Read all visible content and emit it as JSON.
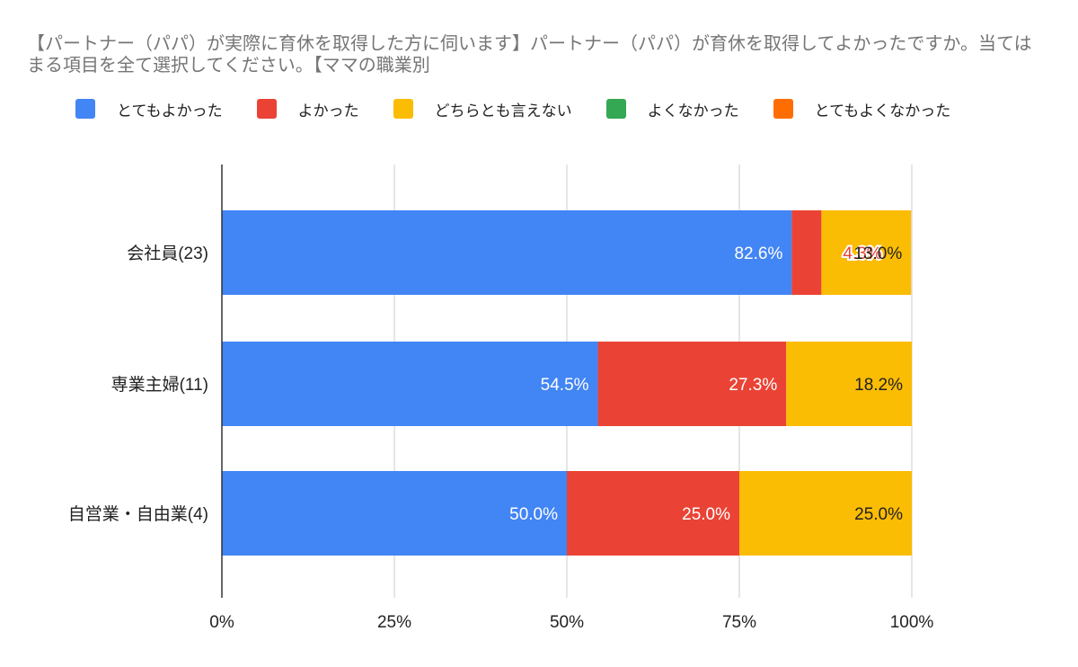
{
  "chart_data": {
    "type": "bar",
    "orientation": "horizontal",
    "stacked": "percent",
    "title": "【パートナー（パパ）が実際に育休を取得した方に伺います】パートナー（パパ）が育休を取得してよかったですか。当てはまる項目を全て選択してください。【ママの職業別",
    "categories": [
      "会社員(23)",
      "専業主婦(11)",
      "自営業・自由業(4)"
    ],
    "series": [
      {
        "name": "とてもよかった",
        "color": "#4285f4",
        "values": [
          82.6,
          54.5,
          50.0
        ],
        "labels": [
          "82.6%",
          "54.5%",
          "50.0%"
        ]
      },
      {
        "name": "よかった",
        "color": "#ea4335",
        "values": [
          4.3,
          27.3,
          25.0
        ],
        "labels": [
          "4.3%",
          "27.3%",
          "25.0%"
        ]
      },
      {
        "name": "どちらとも言えない",
        "color": "#fbbc04",
        "values": [
          13.0,
          18.2,
          25.0
        ],
        "labels": [
          "13.0%",
          "18.2%",
          "25.0%"
        ]
      },
      {
        "name": "よくなかった",
        "color": "#34a853",
        "values": [
          0,
          0,
          0
        ],
        "labels": [
          "",
          "",
          ""
        ]
      },
      {
        "name": "とてもよくなかった",
        "color": "#ff6d01",
        "values": [
          0,
          0,
          0
        ],
        "labels": [
          "",
          "",
          ""
        ]
      }
    ],
    "xlim": [
      0,
      100
    ],
    "xticks": [
      "0%",
      "25%",
      "50%",
      "75%",
      "100%"
    ],
    "grid": true,
    "legend_position": "top"
  }
}
